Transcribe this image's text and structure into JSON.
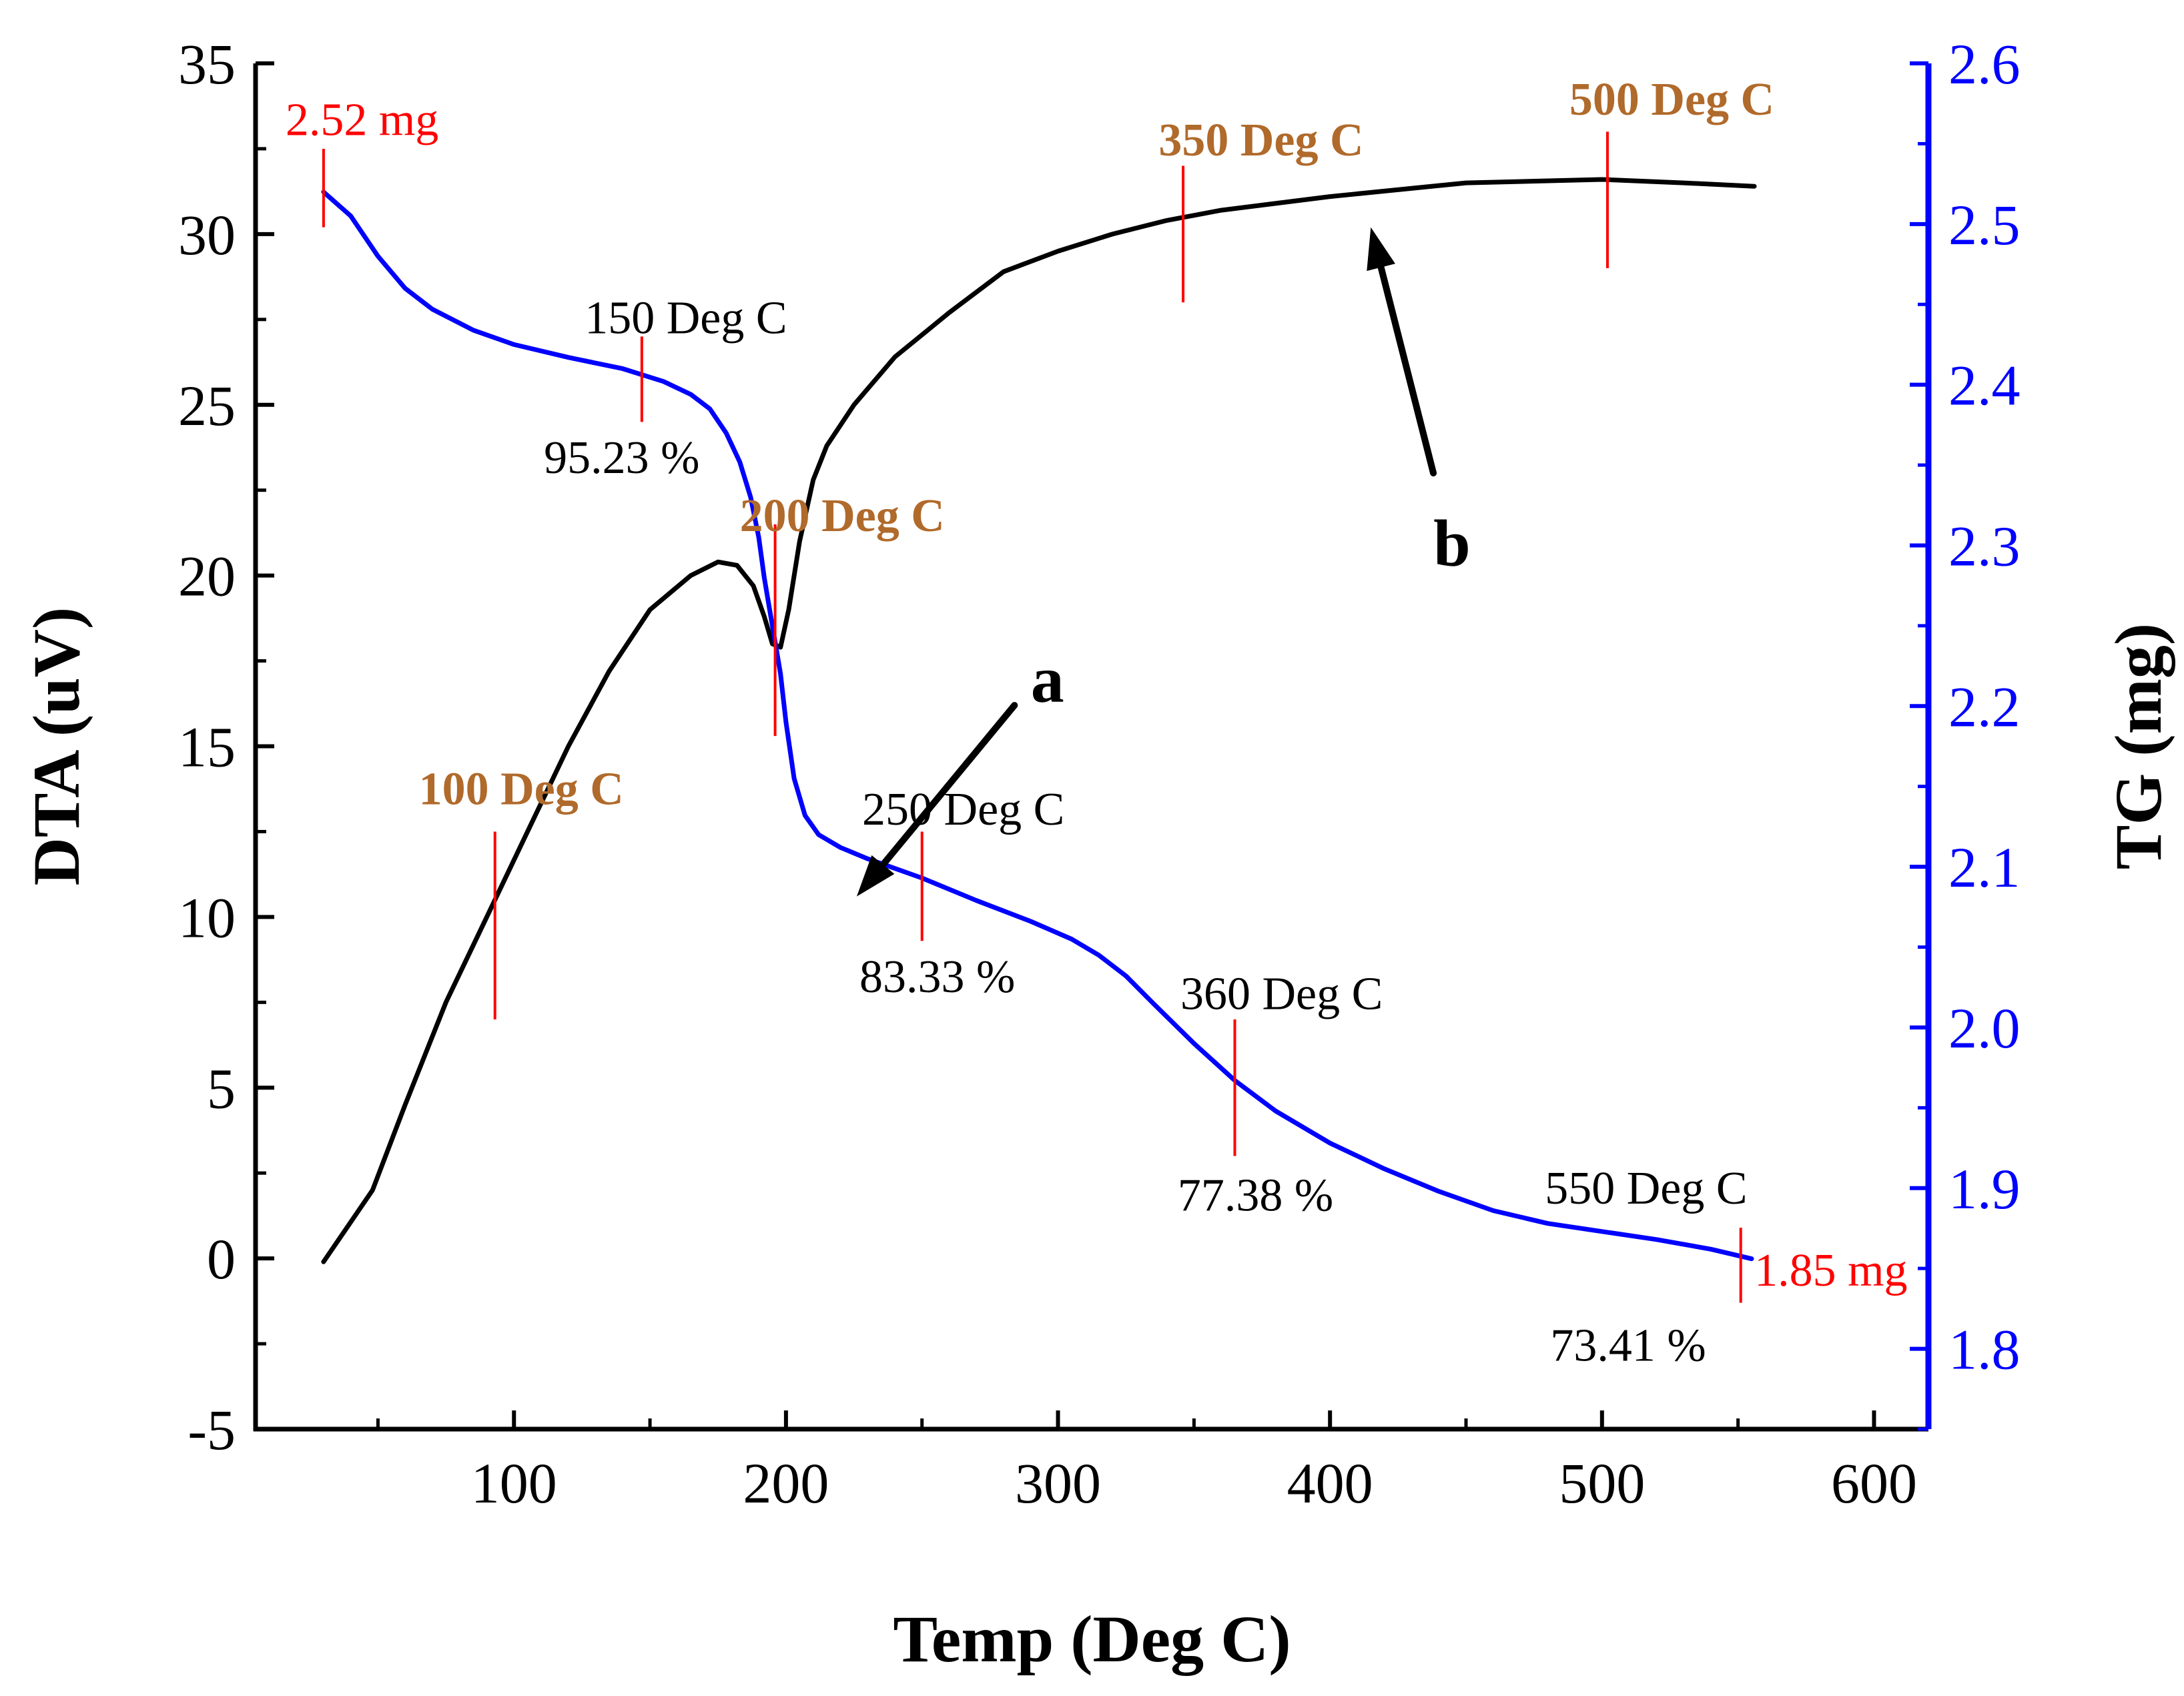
{
  "colors": {
    "dta_curve": "#000000",
    "tg_curve": "#0000ff",
    "right_axis": "#0000ff",
    "marker": "#ff0000",
    "mass_label": "#ff0000",
    "temp_label_bold": "#b06a2b",
    "text": "#000000"
  },
  "chart_data": {
    "type": "line",
    "title": "",
    "xlabel": "Temp (Deg C)",
    "ylabel_left": "DTA (uV)",
    "ylabel_right": "TG (mg)",
    "xlim": [
      5,
      620
    ],
    "ylim_left": [
      -5,
      35
    ],
    "ylim_right": [
      1.75,
      2.6
    ],
    "grid": false,
    "x_ticks": [
      100,
      200,
      300,
      400,
      500,
      600
    ],
    "x_tick_labels": [
      "100",
      "200",
      "300",
      "400",
      "500",
      "600"
    ],
    "y_left_ticks": [
      -5,
      0,
      5,
      10,
      15,
      20,
      25,
      30,
      35
    ],
    "y_left_tick_labels": [
      "-5",
      "0",
      "5",
      "10",
      "15",
      "20",
      "25",
      "30",
      "35"
    ],
    "y_right_ticks": [
      1.8,
      1.9,
      2.0,
      2.1,
      2.2,
      2.3,
      2.4,
      2.5,
      2.6
    ],
    "y_right_tick_labels": [
      "1.8",
      "1.9",
      "2.0",
      "2.1",
      "2.2",
      "2.3",
      "2.4",
      "2.5",
      "2.6"
    ],
    "series": [
      {
        "name": "DTA",
        "axis": "left",
        "x": [
          30,
          48,
          60,
          75,
          90,
          105,
          120,
          135,
          150,
          165,
          175,
          182,
          188,
          192,
          195,
          198,
          201,
          205,
          210,
          215,
          225,
          240,
          260,
          280,
          300,
          320,
          340,
          360,
          400,
          450,
          500,
          530,
          556
        ],
        "values": [
          -0.1,
          2.0,
          4.5,
          7.5,
          10.0,
          12.5,
          15.0,
          17.2,
          19.0,
          20.0,
          20.4,
          20.3,
          19.7,
          18.8,
          18.0,
          17.9,
          19.0,
          21.0,
          22.8,
          23.8,
          25.0,
          26.4,
          27.7,
          28.9,
          29.5,
          30.0,
          30.4,
          30.7,
          31.1,
          31.5,
          31.6,
          31.5,
          31.4
        ]
      },
      {
        "name": "TG",
        "axis": "right",
        "x": [
          30,
          40,
          50,
          60,
          70,
          85,
          100,
          120,
          140,
          155,
          165,
          172,
          178,
          183,
          187,
          190,
          192,
          194,
          196,
          198,
          200,
          203,
          207,
          212,
          220,
          230,
          250,
          270,
          290,
          305,
          315,
          325,
          335,
          350,
          365,
          380,
          400,
          420,
          440,
          460,
          480,
          500,
          520,
          540,
          555
        ],
        "values": [
          2.52,
          2.505,
          2.48,
          2.46,
          2.447,
          2.434,
          2.425,
          2.417,
          2.41,
          2.402,
          2.394,
          2.385,
          2.37,
          2.352,
          2.33,
          2.305,
          2.28,
          2.26,
          2.24,
          2.22,
          2.19,
          2.155,
          2.132,
          2.12,
          2.112,
          2.105,
          2.093,
          2.079,
          2.066,
          2.055,
          2.045,
          2.032,
          2.015,
          1.99,
          1.967,
          1.948,
          1.928,
          1.912,
          1.898,
          1.886,
          1.878,
          1.873,
          1.868,
          1.862,
          1.856
        ]
      }
    ],
    "annotations": {
      "markers": [
        {
          "name": "marker-start",
          "x": 30,
          "y_top": 32.5,
          "y_bottom": 30.2
        },
        {
          "name": "marker-100",
          "x": 93,
          "y_top": 12.5,
          "y_bottom": 7.0
        },
        {
          "name": "marker-150",
          "x": 147,
          "y_top": 27.0,
          "y_bottom": 24.5
        },
        {
          "name": "marker-200",
          "x": 196,
          "y_top": 21.5,
          "y_bottom": 15.3
        },
        {
          "name": "marker-250",
          "x": 250,
          "y_top": 12.5,
          "y_bottom": 9.3
        },
        {
          "name": "marker-350",
          "x": 346,
          "y_top": 32.0,
          "y_bottom": 28.0
        },
        {
          "name": "marker-360",
          "x": 365,
          "y_top": 7.0,
          "y_bottom": 3.0
        },
        {
          "name": "marker-500",
          "x": 502,
          "y_top": 33.0,
          "y_bottom": 29.0
        },
        {
          "name": "marker-550",
          "x": 551,
          "y_top": 0.9,
          "y_bottom": -1.3
        }
      ],
      "labels": [
        {
          "name": "label-start-mass",
          "text": "2.52 mg",
          "style": "mass",
          "x": 16,
          "y": 32.9
        },
        {
          "name": "label-100-deg",
          "text": "100 Deg C",
          "style": "bold",
          "x": 65,
          "y": 13.3
        },
        {
          "name": "label-150-deg",
          "text": "150 Deg C",
          "style": "normal",
          "x": 126,
          "y": 27.1
        },
        {
          "name": "label-150-pct",
          "text": "95.23 %",
          "style": "normal",
          "x": 111,
          "y": 23.0
        },
        {
          "name": "label-200-deg",
          "text": "200 Deg C",
          "style": "bold",
          "x": 183,
          "y": 21.3
        },
        {
          "name": "label-250-deg",
          "text": "250 Deg C",
          "style": "normal",
          "x": 228,
          "y": 12.7
        },
        {
          "name": "label-250-pct",
          "text": "83.33 %",
          "style": "normal",
          "x": 227,
          "y": 7.8
        },
        {
          "name": "label-350-deg",
          "text": "350 Deg C",
          "style": "bold",
          "x": 337,
          "y": 32.3
        },
        {
          "name": "label-360-deg",
          "text": "360 Deg C",
          "style": "normal",
          "x": 345,
          "y": 7.3
        },
        {
          "name": "label-360-pct",
          "text": "77.38 %",
          "style": "normal",
          "x": 344,
          "y": 1.4
        },
        {
          "name": "label-500-deg",
          "text": "500 Deg C",
          "style": "bold",
          "x": 488,
          "y": 33.5
        },
        {
          "name": "label-550-deg",
          "text": "550 Deg C",
          "style": "normal",
          "x": 479,
          "y": 1.6
        },
        {
          "name": "label-550-mass",
          "text": "1.85 mg",
          "style": "mass",
          "x": 556,
          "y": -0.8
        },
        {
          "name": "label-550-pct",
          "text": "73.41 %",
          "style": "normal",
          "x": 481,
          "y": -3.0
        }
      ],
      "arrows": [
        {
          "name": "arrow-a",
          "letter": "a",
          "tail_x": 284,
          "tail_y": 16.2,
          "head_x": 226,
          "head_y": 10.6,
          "letter_x": 290,
          "letter_y": 16.3
        },
        {
          "name": "arrow-b",
          "letter": "b",
          "tail_x": 438,
          "tail_y": 23.0,
          "head_x": 415,
          "head_y": 30.2,
          "letter_x": 438,
          "letter_y": 20.3
        }
      ]
    }
  }
}
